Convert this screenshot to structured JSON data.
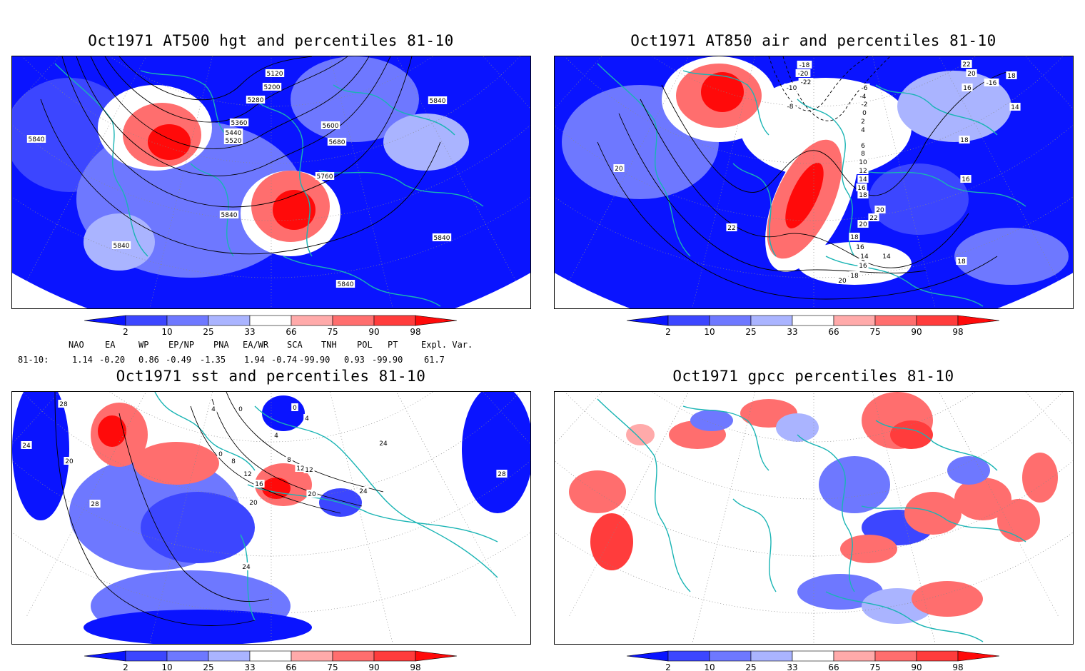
{
  "panels": [
    {
      "title": "Oct1971 AT500 hgt and percentiles 81-10",
      "contour_labels": [
        "5120",
        "5200",
        "5280",
        "5360",
        "5440",
        "5520",
        "5600",
        "5680",
        "5760",
        "5840",
        "5840",
        "5840",
        "5840",
        "5840",
        "5840"
      ]
    },
    {
      "title": "Oct1971 AT850 air and percentiles 81-10",
      "contour_labels": [
        "-18",
        "-20",
        "-22",
        "-10",
        "-8",
        "-6",
        "-4",
        "-2",
        "0",
        "2",
        "4",
        "6",
        "8",
        "10",
        "12",
        "14",
        "16",
        "18",
        "20",
        "22",
        "20",
        "18",
        "16",
        "14",
        "16",
        "18",
        "20",
        "22",
        "20",
        "18",
        "16",
        "14",
        "18",
        "16",
        "14",
        "20",
        "22",
        "-16",
        "18"
      ]
    },
    {
      "title": "Oct1971 sst and percentiles 81-10",
      "contour_labels": [
        "28",
        "24",
        "20",
        "28",
        "24",
        "4",
        "0",
        "0",
        "8",
        "12",
        "16",
        "20",
        "4",
        "8",
        "12",
        "12",
        "20",
        "24",
        "24",
        "28",
        "0",
        "4"
      ]
    },
    {
      "title": "Oct1971 gpcc percentiles 81-10",
      "contour_labels": []
    }
  ],
  "colorbar": {
    "ticks": [
      "2",
      "10",
      "25",
      "33",
      "66",
      "75",
      "90",
      "98"
    ],
    "colors": [
      "#0a14ff",
      "#3c46ff",
      "#6e78ff",
      "#aab4ff",
      "#ffffff",
      "#ffaaaa",
      "#ff6e6e",
      "#ff3c3c",
      "#ff0a0a"
    ]
  },
  "indices": {
    "header": [
      "NAO",
      "EA",
      "WP",
      "EP/NP",
      "PNA",
      "EA/WR",
      "SCA",
      "TNH",
      "POL",
      "PT",
      "Expl. Var."
    ],
    "row_label": "81-10:",
    "values": [
      "1.14",
      "-0.20",
      "0.86",
      "-0.49",
      "-1.35",
      "1.94",
      "-0.74",
      "-99.90",
      "0.93",
      "-99.90",
      "61.7"
    ]
  },
  "colors": {
    "coastline": "#19b4b4",
    "blue": "#0a14ff",
    "red": "#ff0a0a"
  }
}
